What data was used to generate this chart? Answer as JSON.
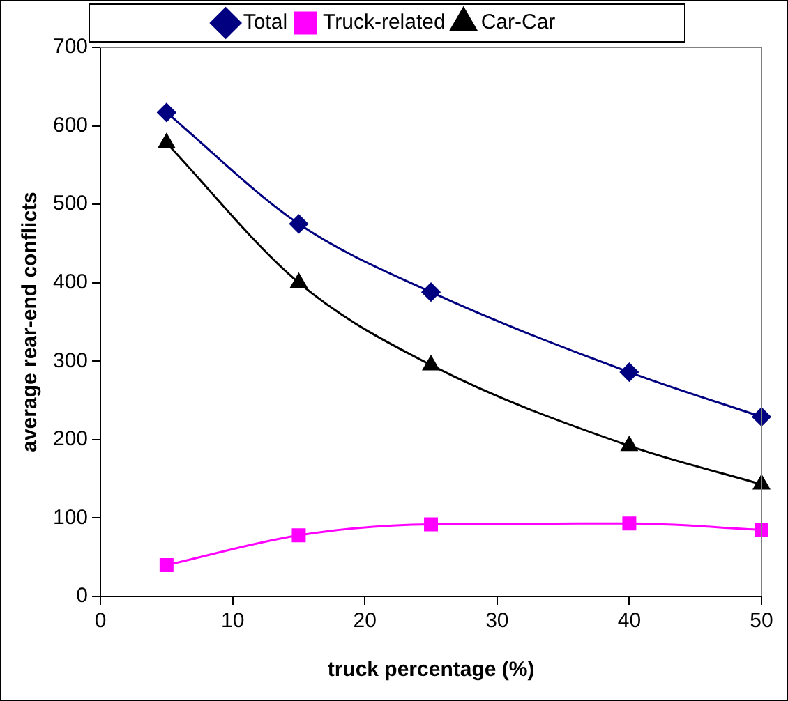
{
  "chart_data": {
    "type": "line",
    "xlabel": "truck percentage (%)",
    "ylabel": "average rear-end conflicts",
    "x": [
      5,
      15,
      25,
      40,
      50
    ],
    "series": [
      {
        "name": "Total",
        "color": "#000080",
        "marker": "diamond",
        "values": [
          617,
          475,
          388,
          286,
          229
        ]
      },
      {
        "name": "Truck-related",
        "color": "#ff00ff",
        "marker": "square",
        "values": [
          40,
          78,
          92,
          93,
          85
        ]
      },
      {
        "name": "Car-Car",
        "color": "#000000",
        "marker": "triangle",
        "values": [
          578,
          400,
          295,
          192,
          143
        ]
      }
    ],
    "xlim": [
      0,
      50
    ],
    "xticks": [
      0,
      10,
      20,
      30,
      40,
      50
    ],
    "ylim": [
      0,
      700
    ],
    "yticks": [
      0,
      100,
      200,
      300,
      400,
      500,
      600,
      700
    ],
    "grid": false,
    "legend": "top"
  }
}
